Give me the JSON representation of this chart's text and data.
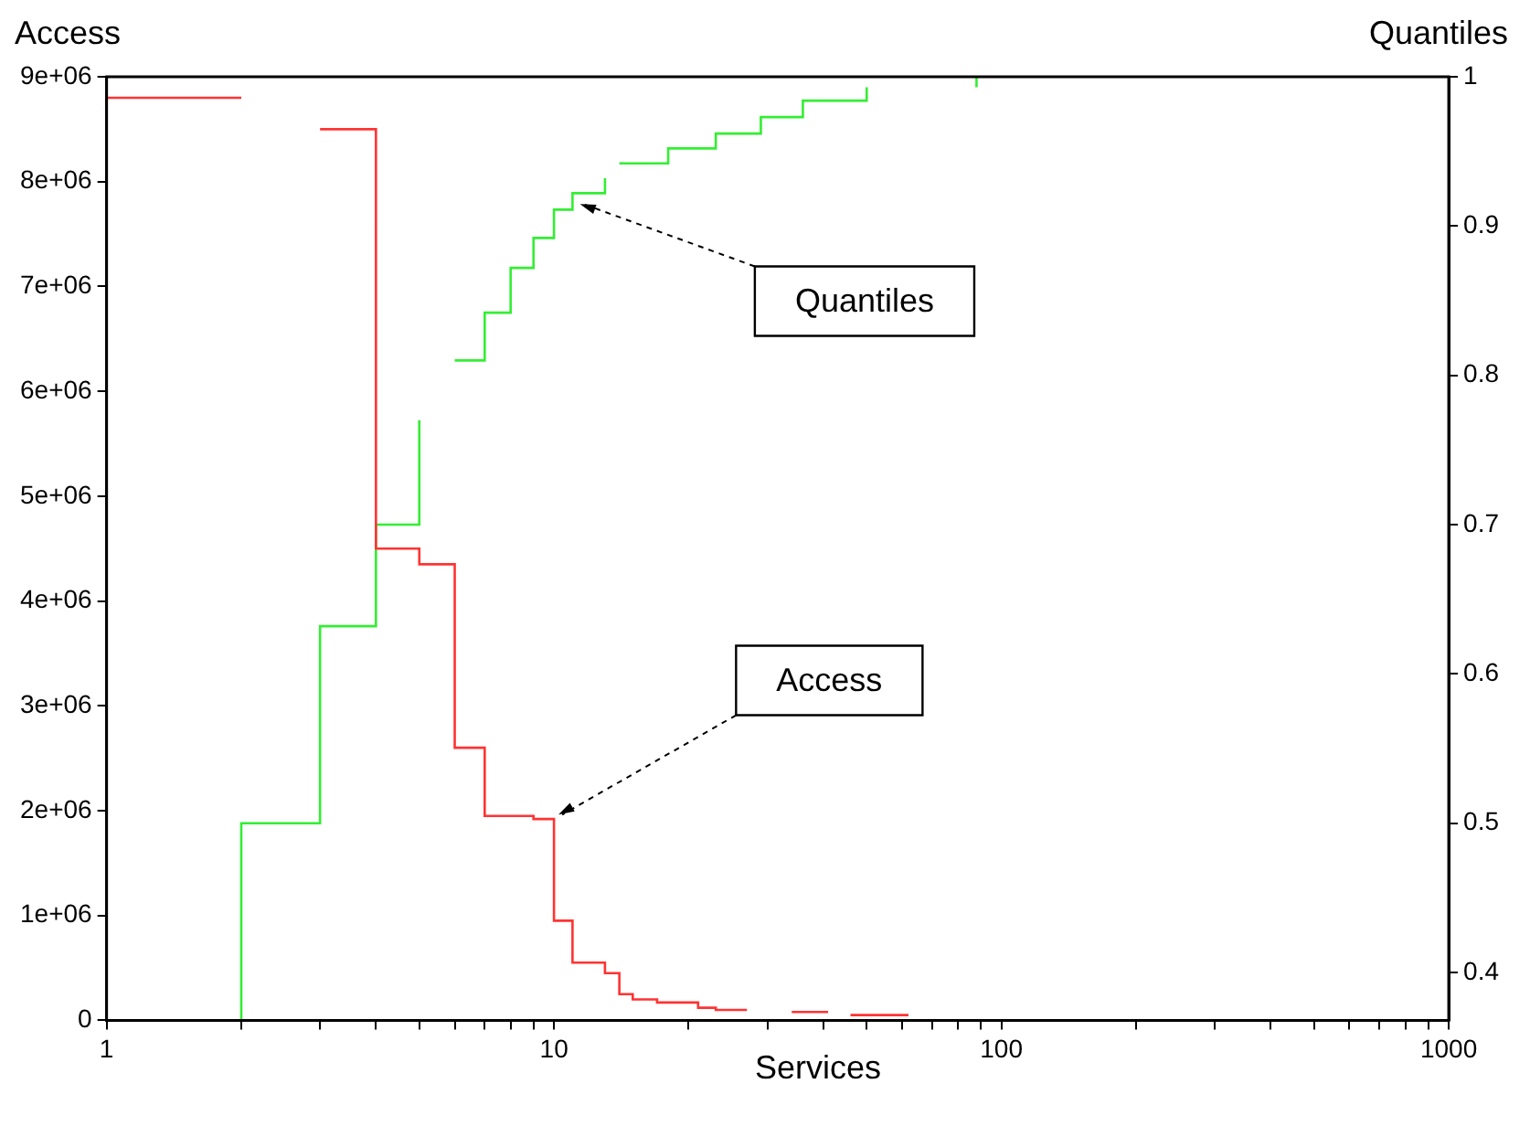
{
  "chart_data": {
    "type": "step",
    "xlabel": "Services",
    "ylabel": "Access",
    "y2label": "Quantiles",
    "log": "x",
    "grid": false,
    "legend": false,
    "xlim": [
      1,
      1000
    ],
    "xticks": [
      1,
      {
        "value": 2,
        "label": null
      },
      {
        "value": 3,
        "label": null
      },
      {
        "value": 4,
        "label": null
      },
      {
        "value": 5,
        "label": null
      },
      {
        "value": 6,
        "label": null
      },
      {
        "value": 7,
        "label": null
      },
      {
        "value": 8,
        "label": null
      },
      {
        "value": 9,
        "label": null
      },
      10,
      {
        "value": 20,
        "label": null
      },
      {
        "value": 30,
        "label": null
      },
      {
        "value": 40,
        "label": null
      },
      {
        "value": 50,
        "label": null
      },
      {
        "value": 60,
        "label": null
      },
      {
        "value": 70,
        "label": null
      },
      {
        "value": 80,
        "label": null
      },
      {
        "value": 90,
        "label": null
      },
      100,
      {
        "value": 200,
        "label": null
      },
      {
        "value": 300,
        "label": null
      },
      {
        "value": 400,
        "label": null
      },
      {
        "value": 500,
        "label": null
      },
      {
        "value": 600,
        "label": null
      },
      {
        "value": 700,
        "label": null
      },
      {
        "value": 800,
        "label": null
      },
      {
        "value": 900,
        "label": null
      },
      1000
    ],
    "ylim": [
      0,
      9000000
    ],
    "yticks": [
      0,
      {
        "value": 1000000,
        "label": "1e+06"
      },
      {
        "value": 2000000,
        "label": "2e+06"
      },
      {
        "value": 3000000,
        "label": "3e+06"
      },
      {
        "value": 4000000,
        "label": "4e+06"
      },
      {
        "value": 5000000,
        "label": "5e+06"
      },
      {
        "value": 6000000,
        "label": "6e+06"
      },
      {
        "value": 7000000,
        "label": "7e+06"
      },
      {
        "value": 8000000,
        "label": "8e+06"
      },
      {
        "value": 9000000,
        "label": "9e+06"
      }
    ],
    "y2lim": [
      0.368,
      1
    ],
    "y2ticks": [
      0.4,
      0.5,
      0.6,
      0.7,
      0.8,
      0.9,
      1
    ],
    "series": [
      {
        "color": "#ff3333",
        "x": [
          1,
          2,
          2.5,
          3,
          4,
          5,
          6,
          7,
          9,
          10,
          11,
          13,
          14,
          15,
          17,
          21,
          23,
          27,
          30,
          34,
          41,
          43,
          46,
          62
        ],
        "values": [
          8800000,
          8800000,
          null,
          8500000,
          4500000,
          4350000,
          2600000,
          1950000,
          1920000,
          950000,
          550000,
          450000,
          250000,
          200000,
          170000,
          120000,
          100000,
          100000,
          null,
          80000,
          80000,
          null,
          50000,
          50000
        ]
      },
      {
        "color": "#33ee33",
        "axis": "y2",
        "x": [
          2,
          2,
          3,
          4,
          5,
          5.5,
          6,
          7,
          8,
          9,
          10,
          11,
          13,
          13.5,
          14,
          18,
          23,
          29,
          36,
          50,
          60,
          88,
          88
        ],
        "values": [
          0.368,
          0.5,
          0.632,
          0.7,
          0.77,
          null,
          0.81,
          0.842,
          0.872,
          0.892,
          0.911,
          0.922,
          0.932,
          null,
          0.942,
          0.952,
          0.962,
          0.973,
          0.984,
          0.993,
          null,
          0.993,
          1
        ]
      }
    ],
    "annotations": [
      "Quantiles",
      "Access"
    ]
  }
}
